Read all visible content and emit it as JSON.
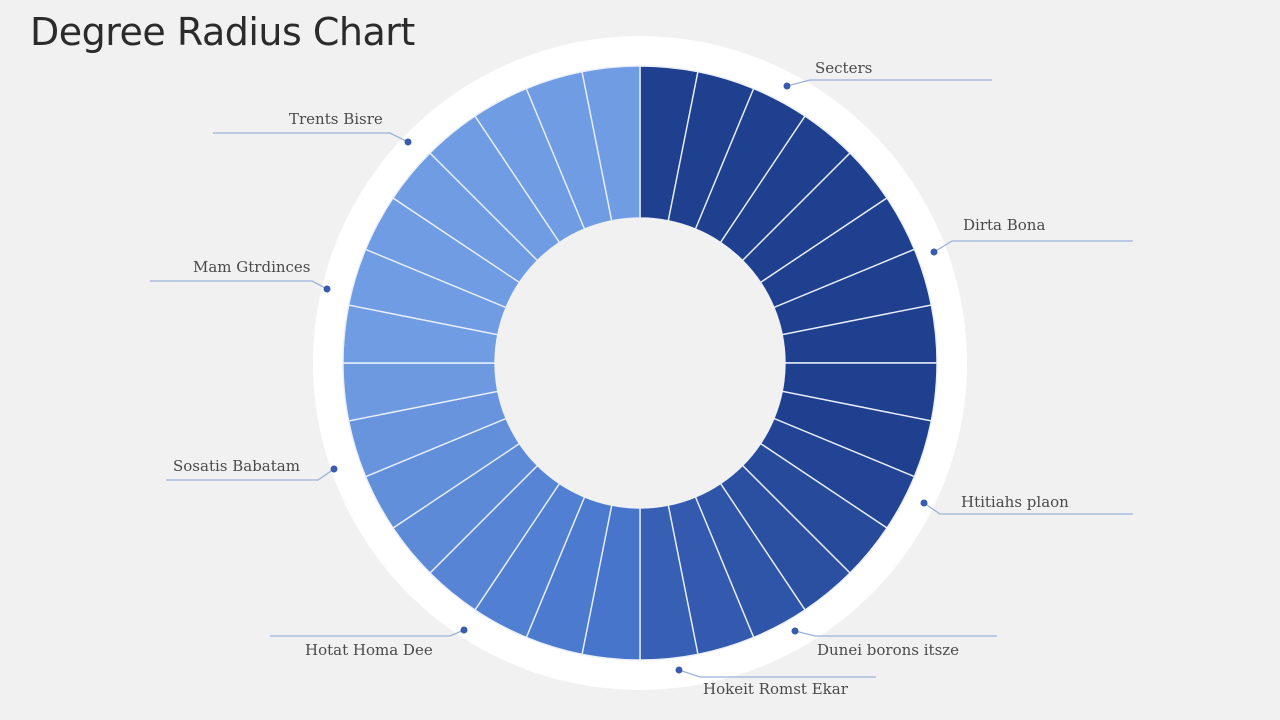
{
  "title": "Degree Radius Chart",
  "colors": {
    "background": "#f1f1f2",
    "ring_outer": "#ffffff",
    "segment_light": "#6f9ce2",
    "segment_mid": "#4472c9",
    "segment_dark": "#1f3f8f",
    "divider": "#e9eef8",
    "callout_line": "#9bb2d8",
    "callout_dot": "#3a5bab"
  },
  "segment_count": 32,
  "callouts": [
    {
      "id": "top-right",
      "label": "Secters"
    },
    {
      "id": "top-left",
      "label": "Trents Bisre"
    },
    {
      "id": "upper-right",
      "label": "Dirta Bona"
    },
    {
      "id": "upper-left",
      "label": "Mam Gtrdinces"
    },
    {
      "id": "lower-left",
      "label": "Sosatis Babatam"
    },
    {
      "id": "lower-right",
      "label": "Htitiahs plaon"
    },
    {
      "id": "bottom-left",
      "label": "Hotat Homa Dee"
    },
    {
      "id": "bottom-right",
      "label": "Dunei borons itsze"
    },
    {
      "id": "bottom",
      "label": "Hokeit Romst Ekar"
    }
  ]
}
